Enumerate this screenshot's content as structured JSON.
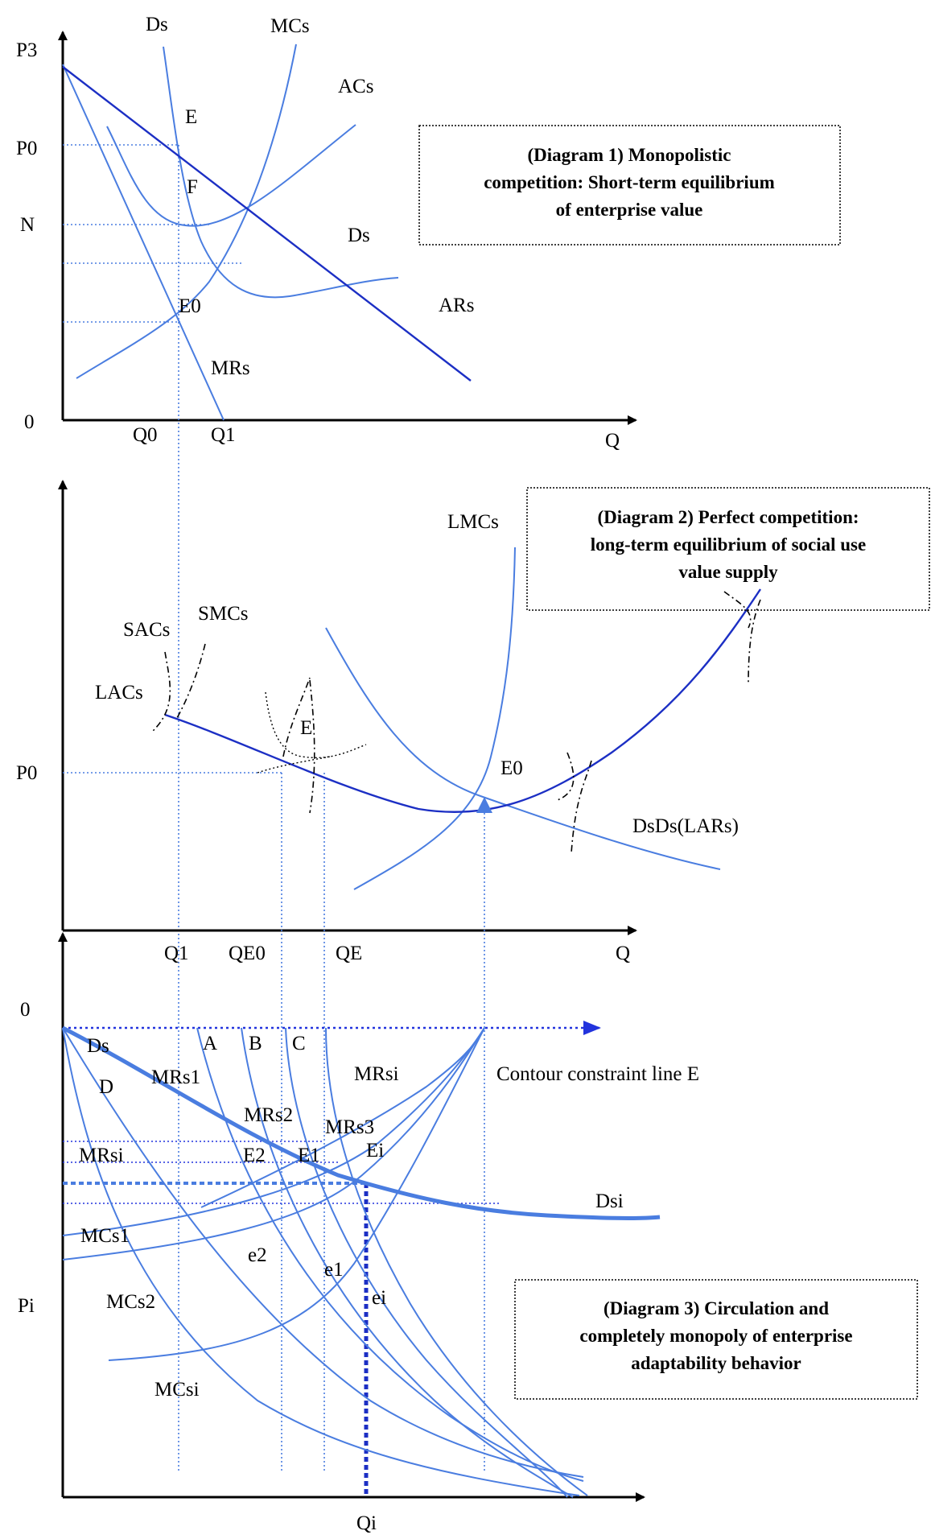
{
  "colors": {
    "curve": "#4a7de0",
    "bold_curve": "#1c2fc4",
    "axis": "#000000",
    "guide": "#4a7de0"
  },
  "diagram1": {
    "title_lines": [
      "(Diagram 1) Monopolistic",
      "competition: Short-term equilibrium",
      "of enterprise value"
    ],
    "axis_y": [
      "P3",
      "P0",
      "N",
      "0"
    ],
    "axis_x": [
      "Q0",
      "Q1",
      "Q"
    ],
    "curves": [
      "Ds",
      "MCs",
      "ACs",
      "Ds",
      "ARs",
      "MRs"
    ],
    "points": [
      "E",
      "F",
      "E0"
    ]
  },
  "diagram2": {
    "title_lines": [
      "(Diagram 2) Perfect competition:",
      "long-term equilibrium of social use",
      "value supply"
    ],
    "axis_y": [
      "P0"
    ],
    "axis_x": [
      "Q1",
      "QE0",
      "QE",
      "Q"
    ],
    "curves": [
      "LMCs",
      "SACs",
      "SMCs",
      "LACs",
      "DsDs(LARs)"
    ],
    "points": [
      "E",
      "E0"
    ]
  },
  "diagram3": {
    "title_lines": [
      "(Diagram 3) Circulation and",
      "completely monopoly of enterprise",
      "adaptability behavior"
    ],
    "axis_y": [
      "0",
      "Pi"
    ],
    "axis_x": [
      "Qi"
    ],
    "top_labels": [
      "Ds",
      "A",
      "B",
      "C",
      "MRsi",
      "Contour constraint line E"
    ],
    "curves": [
      "D",
      "MRs1",
      "MRs2",
      "MRs3",
      "MRsi",
      "Dsi",
      "MCs1",
      "MCs2",
      "MCsi"
    ],
    "points": [
      "E2",
      "E1",
      "Ei",
      "e2",
      "e1",
      "ei"
    ]
  }
}
